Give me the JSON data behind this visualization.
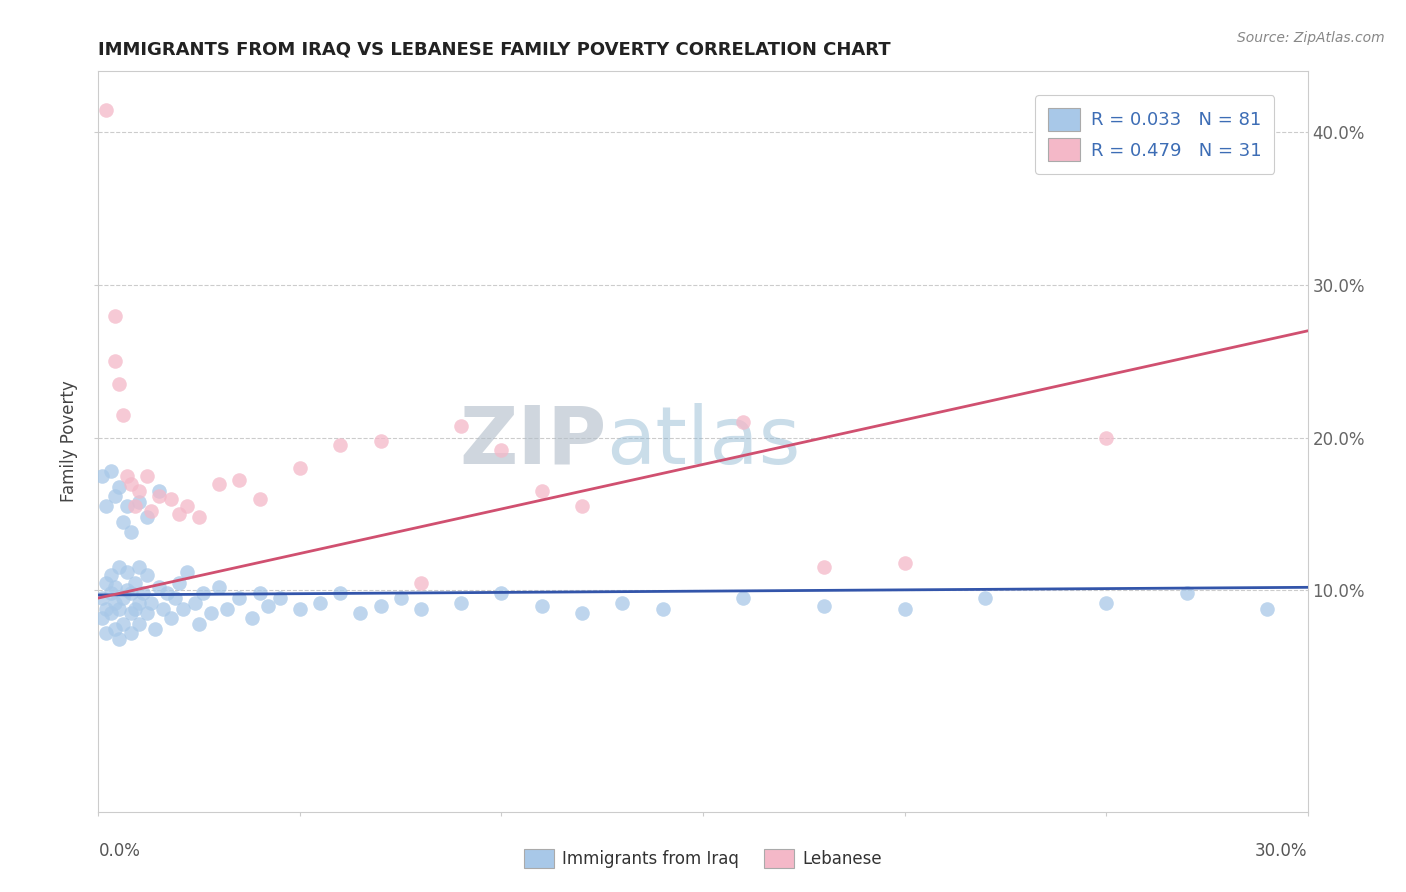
{
  "title": "IMMIGRANTS FROM IRAQ VS LEBANESE FAMILY POVERTY CORRELATION CHART",
  "source": "Source: ZipAtlas.com",
  "ylabel": "Family Poverty",
  "xlim": [
    0.0,
    0.3
  ],
  "ylim": [
    -0.045,
    0.44
  ],
  "yticks": [
    0.1,
    0.2,
    0.3,
    0.4
  ],
  "ytick_labels": [
    "10.0%",
    "20.0%",
    "30.0%",
    "40.0%"
  ],
  "legend1_r": "0.033",
  "legend1_n": "81",
  "legend2_r": "0.479",
  "legend2_n": "31",
  "legend_color": "#3d6db5",
  "iraq_color": "#a8c8e8",
  "lebanese_color": "#f4b8c8",
  "iraq_line_color": "#3355aa",
  "lebanese_line_color": "#d05070",
  "watermark_zip": "ZIP",
  "watermark_atlas": "atlas",
  "iraq_x": [
    0.001,
    0.001,
    0.002,
    0.002,
    0.002,
    0.003,
    0.003,
    0.003,
    0.004,
    0.004,
    0.004,
    0.005,
    0.005,
    0.005,
    0.006,
    0.006,
    0.007,
    0.007,
    0.008,
    0.008,
    0.008,
    0.009,
    0.009,
    0.01,
    0.01,
    0.01,
    0.011,
    0.012,
    0.012,
    0.013,
    0.014,
    0.015,
    0.016,
    0.017,
    0.018,
    0.019,
    0.02,
    0.021,
    0.022,
    0.024,
    0.025,
    0.026,
    0.028,
    0.03,
    0.032,
    0.035,
    0.038,
    0.04,
    0.042,
    0.045,
    0.05,
    0.055,
    0.06,
    0.065,
    0.07,
    0.075,
    0.08,
    0.09,
    0.1,
    0.11,
    0.12,
    0.13,
    0.14,
    0.16,
    0.18,
    0.2,
    0.22,
    0.25,
    0.27,
    0.29,
    0.001,
    0.002,
    0.003,
    0.004,
    0.005,
    0.006,
    0.007,
    0.008,
    0.01,
    0.012,
    0.015
  ],
  "iraq_y": [
    0.095,
    0.082,
    0.088,
    0.105,
    0.072,
    0.098,
    0.085,
    0.11,
    0.092,
    0.075,
    0.102,
    0.088,
    0.115,
    0.068,
    0.095,
    0.078,
    0.1,
    0.112,
    0.085,
    0.098,
    0.072,
    0.105,
    0.088,
    0.092,
    0.078,
    0.115,
    0.098,
    0.085,
    0.11,
    0.092,
    0.075,
    0.102,
    0.088,
    0.098,
    0.082,
    0.095,
    0.105,
    0.088,
    0.112,
    0.092,
    0.078,
    0.098,
    0.085,
    0.102,
    0.088,
    0.095,
    0.082,
    0.098,
    0.09,
    0.095,
    0.088,
    0.092,
    0.098,
    0.085,
    0.09,
    0.095,
    0.088,
    0.092,
    0.098,
    0.09,
    0.085,
    0.092,
    0.088,
    0.095,
    0.09,
    0.088,
    0.095,
    0.092,
    0.098,
    0.088,
    0.175,
    0.155,
    0.178,
    0.162,
    0.168,
    0.145,
    0.155,
    0.138,
    0.158,
    0.148,
    0.165
  ],
  "leb_x": [
    0.002,
    0.004,
    0.004,
    0.005,
    0.006,
    0.007,
    0.008,
    0.009,
    0.01,
    0.012,
    0.013,
    0.015,
    0.018,
    0.02,
    0.022,
    0.025,
    0.03,
    0.035,
    0.04,
    0.05,
    0.06,
    0.07,
    0.08,
    0.09,
    0.1,
    0.11,
    0.12,
    0.16,
    0.18,
    0.2,
    0.25
  ],
  "leb_y": [
    0.415,
    0.28,
    0.25,
    0.235,
    0.215,
    0.175,
    0.17,
    0.155,
    0.165,
    0.175,
    0.152,
    0.162,
    0.16,
    0.15,
    0.155,
    0.148,
    0.17,
    0.172,
    0.16,
    0.18,
    0.195,
    0.198,
    0.105,
    0.208,
    0.192,
    0.165,
    0.155,
    0.21,
    0.115,
    0.118,
    0.2
  ],
  "iraq_trend": [
    0.097,
    0.102
  ],
  "leb_trend": [
    0.095,
    0.27
  ]
}
